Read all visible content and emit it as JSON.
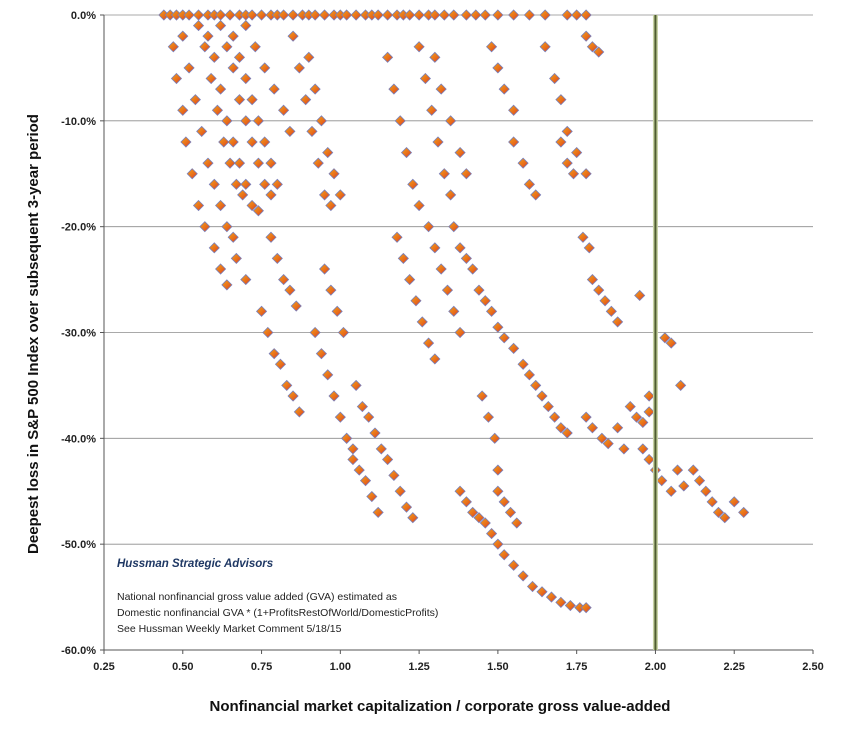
{
  "chart_data": {
    "type": "scatter",
    "title": "",
    "xlabel": "Nonfinancial market capitalization / corporate gross value-added",
    "ylabel": "Deepest loss in S&P 500 Index over subsequent 3-year period",
    "xlim": [
      0.25,
      2.5
    ],
    "ylim": [
      -60,
      0
    ],
    "x_ticks": [
      "0.25",
      "0.50",
      "0.75",
      "1.00",
      "1.25",
      "1.50",
      "1.75",
      "2.00",
      "2.25",
      "2.50"
    ],
    "y_ticks": [
      "0.0%",
      "-10.0%",
      "-20.0%",
      "-30.0%",
      "-40.0%",
      "-50.0%",
      "-60.0%"
    ],
    "grid": "horizontal",
    "reference_line_x": 2.0,
    "marker": "diamond",
    "marker_colors": [
      "#e8701a",
      "#d9342b",
      "#f2a11b",
      "#7a7fb8"
    ],
    "annotation": {
      "org": "Hussman Strategic Advisors",
      "lines": [
        "National nonfinancial gross value added (GVA) estimated as",
        "Domestic nonfinancial GVA * (1+ProfitsRestOfWorld/DomesticProfits)",
        "See Hussman Weekly Market Comment  5/18/15"
      ]
    },
    "series": [
      {
        "points": [
          [
            0.44,
            0
          ],
          [
            0.46,
            0
          ],
          [
            0.48,
            0
          ],
          [
            0.5,
            0
          ],
          [
            0.52,
            0
          ],
          [
            0.55,
            0
          ],
          [
            0.58,
            0
          ],
          [
            0.6,
            0
          ],
          [
            0.62,
            0
          ],
          [
            0.65,
            0
          ],
          [
            0.68,
            0
          ],
          [
            0.7,
            0
          ],
          [
            0.72,
            0
          ],
          [
            0.75,
            0
          ],
          [
            0.78,
            0
          ],
          [
            0.8,
            0
          ],
          [
            0.82,
            0
          ],
          [
            0.85,
            0
          ],
          [
            0.88,
            0
          ],
          [
            0.9,
            0
          ],
          [
            0.92,
            0
          ],
          [
            0.95,
            0
          ],
          [
            0.98,
            0
          ],
          [
            1.0,
            0
          ],
          [
            1.02,
            0
          ],
          [
            1.05,
            0
          ],
          [
            1.08,
            0
          ],
          [
            1.1,
            0
          ],
          [
            1.12,
            0
          ],
          [
            1.15,
            0
          ],
          [
            1.18,
            0
          ],
          [
            1.2,
            0
          ],
          [
            1.22,
            0
          ],
          [
            1.25,
            0
          ],
          [
            1.28,
            0
          ],
          [
            1.3,
            0
          ],
          [
            1.33,
            0
          ],
          [
            1.36,
            0
          ],
          [
            1.4,
            0
          ],
          [
            1.43,
            0
          ],
          [
            1.46,
            0
          ],
          [
            1.5,
            0
          ],
          [
            1.55,
            0
          ],
          [
            1.6,
            0
          ],
          [
            1.65,
            0
          ],
          [
            1.72,
            0
          ],
          [
            1.75,
            0
          ],
          [
            1.78,
            0
          ],
          [
            0.47,
            -3
          ],
          [
            0.48,
            -6
          ],
          [
            0.5,
            -9
          ],
          [
            0.51,
            -12
          ],
          [
            0.53,
            -15
          ],
          [
            0.55,
            -18
          ],
          [
            0.57,
            -20
          ],
          [
            0.6,
            -22
          ],
          [
            0.62,
            -24
          ],
          [
            0.64,
            -25.5
          ],
          [
            0.67,
            -23
          ],
          [
            0.7,
            -25
          ],
          [
            0.5,
            -2
          ],
          [
            0.52,
            -5
          ],
          [
            0.54,
            -8
          ],
          [
            0.56,
            -11
          ],
          [
            0.58,
            -14
          ],
          [
            0.6,
            -16
          ],
          [
            0.62,
            -18
          ],
          [
            0.64,
            -20
          ],
          [
            0.66,
            -21
          ],
          [
            0.55,
            -1
          ],
          [
            0.57,
            -3
          ],
          [
            0.59,
            -6
          ],
          [
            0.61,
            -9
          ],
          [
            0.63,
            -12
          ],
          [
            0.65,
            -14
          ],
          [
            0.67,
            -16
          ],
          [
            0.69,
            -17
          ],
          [
            0.58,
            -2
          ],
          [
            0.6,
            -4
          ],
          [
            0.62,
            -7
          ],
          [
            0.64,
            -10
          ],
          [
            0.66,
            -12
          ],
          [
            0.68,
            -14
          ],
          [
            0.7,
            -16
          ],
          [
            0.72,
            -18
          ],
          [
            0.74,
            -18.5
          ],
          [
            0.62,
            -1
          ],
          [
            0.64,
            -3
          ],
          [
            0.66,
            -5
          ],
          [
            0.68,
            -8
          ],
          [
            0.7,
            -10
          ],
          [
            0.72,
            -12
          ],
          [
            0.74,
            -14
          ],
          [
            0.76,
            -16
          ],
          [
            0.78,
            -17
          ],
          [
            0.66,
            -2
          ],
          [
            0.68,
            -4
          ],
          [
            0.7,
            -6
          ],
          [
            0.72,
            -8
          ],
          [
            0.74,
            -10
          ],
          [
            0.76,
            -12
          ],
          [
            0.78,
            -14
          ],
          [
            0.8,
            -16
          ],
          [
            0.7,
            -1
          ],
          [
            0.73,
            -3
          ],
          [
            0.76,
            -5
          ],
          [
            0.79,
            -7
          ],
          [
            0.82,
            -9
          ],
          [
            0.84,
            -11
          ],
          [
            0.75,
            -28
          ],
          [
            0.77,
            -30
          ],
          [
            0.79,
            -32
          ],
          [
            0.81,
            -33
          ],
          [
            0.83,
            -35
          ],
          [
            0.85,
            -36
          ],
          [
            0.87,
            -37.5
          ],
          [
            0.78,
            -21
          ],
          [
            0.8,
            -23
          ],
          [
            0.82,
            -25
          ],
          [
            0.84,
            -26
          ],
          [
            0.86,
            -27.5
          ],
          [
            0.85,
            -2
          ],
          [
            0.87,
            -5
          ],
          [
            0.89,
            -8
          ],
          [
            0.91,
            -11
          ],
          [
            0.93,
            -14
          ],
          [
            0.95,
            -17
          ],
          [
            0.97,
            -18
          ],
          [
            0.9,
            -4
          ],
          [
            0.92,
            -7
          ],
          [
            0.94,
            -10
          ],
          [
            0.96,
            -13
          ],
          [
            0.98,
            -15
          ],
          [
            1.0,
            -17
          ],
          [
            0.92,
            -30
          ],
          [
            0.94,
            -32
          ],
          [
            0.96,
            -34
          ],
          [
            0.98,
            -36
          ],
          [
            1.0,
            -38
          ],
          [
            1.02,
            -40
          ],
          [
            1.04,
            -41
          ],
          [
            0.95,
            -24
          ],
          [
            0.97,
            -26
          ],
          [
            0.99,
            -28
          ],
          [
            1.01,
            -30
          ],
          [
            1.02,
            -40
          ],
          [
            1.04,
            -42
          ],
          [
            1.06,
            -43
          ],
          [
            1.08,
            -44
          ],
          [
            1.1,
            -45.5
          ],
          [
            1.12,
            -47
          ],
          [
            1.05,
            -35
          ],
          [
            1.07,
            -37
          ],
          [
            1.09,
            -38
          ],
          [
            1.11,
            -39.5
          ],
          [
            1.13,
            -41
          ],
          [
            1.15,
            -42
          ],
          [
            1.17,
            -43.5
          ],
          [
            1.19,
            -45
          ],
          [
            1.21,
            -46.5
          ],
          [
            1.23,
            -47.5
          ],
          [
            1.15,
            -4
          ],
          [
            1.17,
            -7
          ],
          [
            1.19,
            -10
          ],
          [
            1.21,
            -13
          ],
          [
            1.23,
            -16
          ],
          [
            1.25,
            -18
          ],
          [
            1.18,
            -21
          ],
          [
            1.2,
            -23
          ],
          [
            1.22,
            -25
          ],
          [
            1.24,
            -27
          ],
          [
            1.26,
            -29
          ],
          [
            1.28,
            -31
          ],
          [
            1.3,
            -32.5
          ],
          [
            1.25,
            -3
          ],
          [
            1.27,
            -6
          ],
          [
            1.29,
            -9
          ],
          [
            1.31,
            -12
          ],
          [
            1.33,
            -15
          ],
          [
            1.35,
            -17
          ],
          [
            1.28,
            -20
          ],
          [
            1.3,
            -22
          ],
          [
            1.32,
            -24
          ],
          [
            1.34,
            -26
          ],
          [
            1.36,
            -28
          ],
          [
            1.38,
            -30
          ],
          [
            1.3,
            -4
          ],
          [
            1.32,
            -7
          ],
          [
            1.35,
            -10
          ],
          [
            1.38,
            -13
          ],
          [
            1.4,
            -15
          ],
          [
            1.36,
            -20
          ],
          [
            1.38,
            -22
          ],
          [
            1.4,
            -23
          ],
          [
            1.42,
            -24
          ],
          [
            1.44,
            -26
          ],
          [
            1.46,
            -27
          ],
          [
            1.48,
            -28
          ],
          [
            1.5,
            -29.5
          ],
          [
            1.52,
            -30.5
          ],
          [
            1.55,
            -31.5
          ],
          [
            1.38,
            -45
          ],
          [
            1.4,
            -46
          ],
          [
            1.42,
            -47
          ],
          [
            1.44,
            -47.5
          ],
          [
            1.46,
            -48
          ],
          [
            1.48,
            -49
          ],
          [
            1.5,
            -50
          ],
          [
            1.52,
            -51
          ],
          [
            1.55,
            -52
          ],
          [
            1.58,
            -53
          ],
          [
            1.61,
            -54
          ],
          [
            1.64,
            -54.5
          ],
          [
            1.67,
            -55
          ],
          [
            1.7,
            -55.5
          ],
          [
            1.73,
            -55.8
          ],
          [
            1.76,
            -56
          ],
          [
            1.78,
            -56
          ],
          [
            1.45,
            -36
          ],
          [
            1.47,
            -38
          ],
          [
            1.49,
            -40
          ],
          [
            1.5,
            -43
          ],
          [
            1.5,
            -45
          ],
          [
            1.52,
            -46
          ],
          [
            1.54,
            -47
          ],
          [
            1.56,
            -48
          ],
          [
            1.48,
            -3
          ],
          [
            1.5,
            -5
          ],
          [
            1.52,
            -7
          ],
          [
            1.55,
            -9
          ],
          [
            1.55,
            -12
          ],
          [
            1.58,
            -14
          ],
          [
            1.6,
            -16
          ],
          [
            1.62,
            -17
          ],
          [
            1.58,
            -33
          ],
          [
            1.6,
            -34
          ],
          [
            1.62,
            -35
          ],
          [
            1.64,
            -36
          ],
          [
            1.66,
            -37
          ],
          [
            1.68,
            -38
          ],
          [
            1.7,
            -39
          ],
          [
            1.72,
            -39.5
          ],
          [
            1.65,
            -3
          ],
          [
            1.68,
            -6
          ],
          [
            1.7,
            -8
          ],
          [
            1.72,
            -11
          ],
          [
            1.75,
            -13
          ],
          [
            1.78,
            -15
          ],
          [
            1.7,
            -12
          ],
          [
            1.72,
            -14
          ],
          [
            1.74,
            -15
          ],
          [
            1.77,
            -21
          ],
          [
            1.79,
            -22
          ],
          [
            1.8,
            -25
          ],
          [
            1.82,
            -26
          ],
          [
            1.84,
            -27
          ],
          [
            1.86,
            -28
          ],
          [
            1.88,
            -29
          ],
          [
            1.78,
            -2
          ],
          [
            1.8,
            -3
          ],
          [
            1.82,
            -3.5
          ],
          [
            1.78,
            -38
          ],
          [
            1.8,
            -39
          ],
          [
            1.83,
            -40
          ],
          [
            1.85,
            -40.5
          ],
          [
            1.88,
            -39
          ],
          [
            1.9,
            -41
          ],
          [
            1.92,
            -37
          ],
          [
            1.94,
            -38
          ],
          [
            1.96,
            -38.5
          ],
          [
            1.98,
            -37.5
          ],
          [
            1.95,
            -26.5
          ],
          [
            1.98,
            -36
          ],
          [
            1.96,
            -41
          ],
          [
            1.98,
            -42
          ],
          [
            2.0,
            -43
          ],
          [
            2.02,
            -44
          ],
          [
            2.05,
            -45
          ],
          [
            2.07,
            -43
          ],
          [
            2.09,
            -44.5
          ],
          [
            2.12,
            -43
          ],
          [
            2.14,
            -44
          ],
          [
            2.16,
            -45
          ],
          [
            2.18,
            -46
          ],
          [
            2.2,
            -47
          ],
          [
            2.22,
            -47.5
          ],
          [
            2.25,
            -46
          ],
          [
            2.28,
            -47
          ],
          [
            2.03,
            -30.5
          ],
          [
            2.05,
            -31
          ],
          [
            2.08,
            -35
          ]
        ]
      }
    ]
  }
}
